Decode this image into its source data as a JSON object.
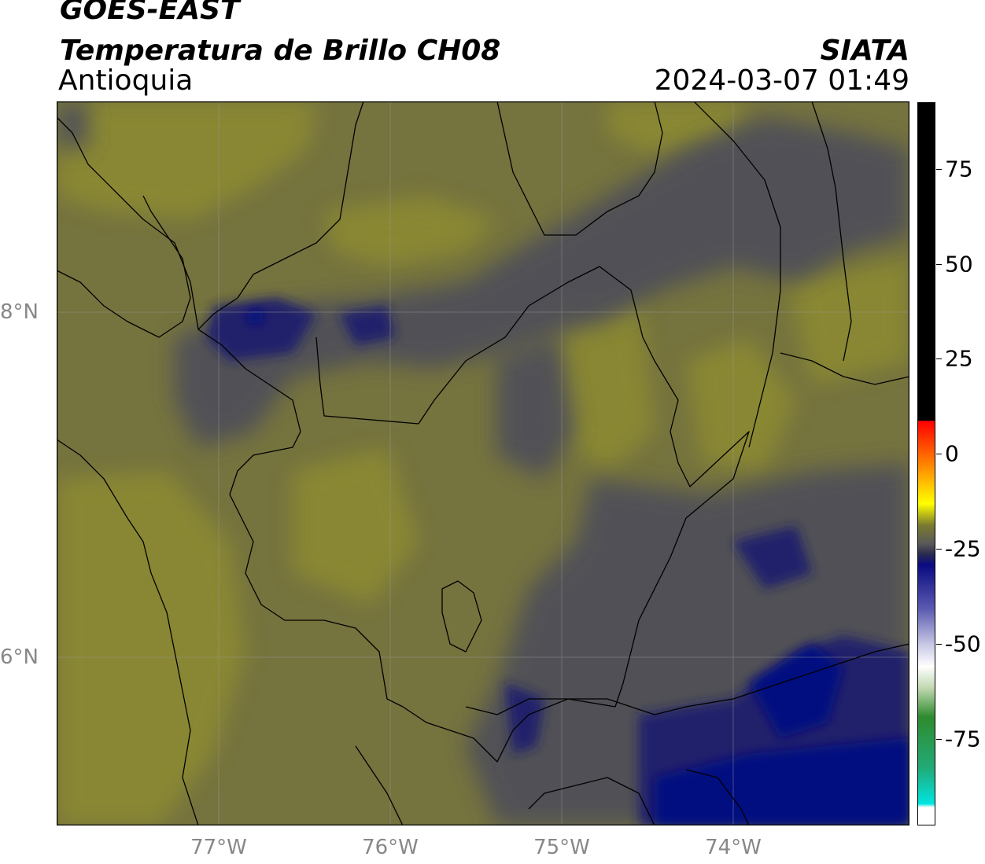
{
  "header": {
    "satellite": "GOES-EAST",
    "product": "Temperatura de Brillo CH08",
    "region": "Antioquia",
    "organization": "SIATA",
    "datetime": "2024-03-07 01:49"
  },
  "map": {
    "latitude_labels": [
      "8°N",
      "6°N"
    ],
    "longitude_labels": [
      "77°W",
      "76°W",
      "75°W",
      "74°W"
    ]
  },
  "colorbar": {
    "ticks": [
      "75",
      "50",
      "25",
      "0",
      "-25",
      "-50",
      "-75"
    ]
  },
  "colors": {
    "warm_olive": "#8a8a2e",
    "olive": "#6b6a43",
    "grey": "#4e4f55",
    "dark_blue": "#0a0a78",
    "cold_black": "#000000"
  }
}
